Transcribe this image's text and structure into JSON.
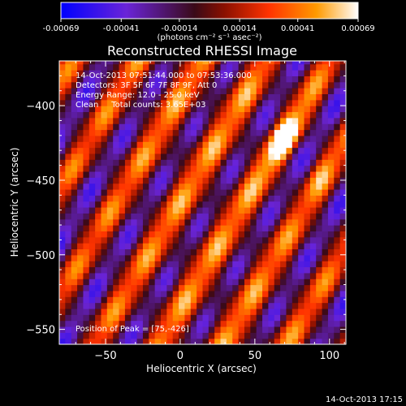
{
  "chart_data": {
    "type": "heatmap",
    "title": "Reconstructed RHESSI Image",
    "xlabel": "Heliocentric X (arcsec)",
    "ylabel": "Heliocentric Y (arcsec)",
    "xlim": [
      -81,
      111
    ],
    "ylim": [
      -560,
      -370
    ],
    "x_ticks": [
      -50,
      0,
      50,
      100
    ],
    "y_ticks": [
      -400,
      -450,
      -500,
      -550
    ],
    "colorbar": {
      "ticks": [
        "-0.00069",
        "-0.00041",
        "-0.00014",
        "0.00014",
        "0.00041",
        "0.00069"
      ],
      "range": [
        -0.00069,
        0.00069
      ],
      "colors": [
        "#0000ff",
        "#6a24d8",
        "#3a0a18",
        "#8a1000",
        "#ff3300",
        "#ff9a00",
        "#ffffff"
      ]
    },
    "unit_label": "(photons cm⁻² s⁻¹ asec⁻²)",
    "info_lines": [
      "14-Oct-2013 07:51:44.000 to 07:53:36.000",
      "Detectors: 3F 5F 6F 7F 8F 9F, Att 0",
      "Energy Range: 12.0 - 25.0 keV",
      "Clean     Total counts: 3.65E+03"
    ],
    "peak_label": "Position of Peak = [75,-426]",
    "peak": [
      75,
      -426
    ]
  },
  "footer": {
    "timestamp": "14-Oct-2013 17:15"
  }
}
